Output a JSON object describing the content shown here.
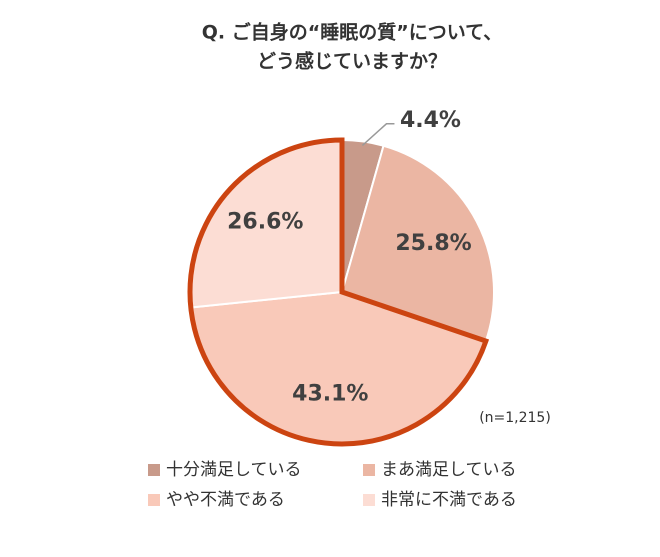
{
  "chart_data": {
    "type": "pie",
    "title": [
      "Q. ご自身の“睡眠の質”について、",
      "どう感じていますか？"
    ],
    "categories": [
      "十分満足している",
      "まあ満足している",
      "やや不満である",
      "非常に不満である"
    ],
    "values": [
      4.4,
      25.8,
      43.1,
      26.6
    ],
    "value_labels": [
      "4.4%",
      "25.8%",
      "43.1%",
      "26.6%"
    ],
    "colors": [
      "#c89a8a",
      "#ebb6a3",
      "#f9c9b9",
      "#fcddd4"
    ],
    "highlight": [
      2,
      3
    ],
    "highlight_color": "#cc4411",
    "annotation": "(n=1,215)"
  }
}
